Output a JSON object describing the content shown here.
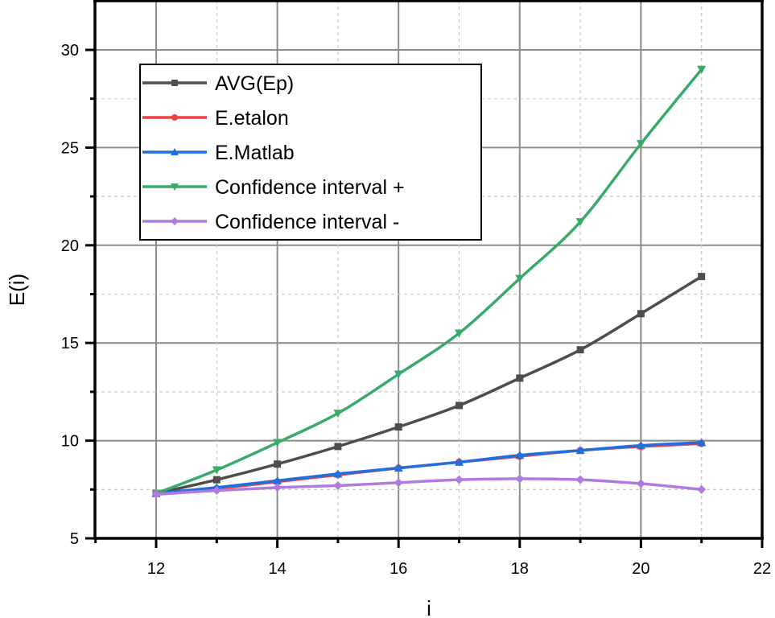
{
  "chart_data": {
    "type": "line",
    "title": "",
    "xlabel": "i",
    "ylabel": "E(i)",
    "xlim": [
      11,
      22
    ],
    "ylim": [
      5,
      32.5
    ],
    "x_ticks": [
      12,
      14,
      16,
      18,
      20,
      22
    ],
    "y_ticks": [
      5,
      10,
      15,
      20,
      25,
      30
    ],
    "grid": true,
    "legend_position": "upper left",
    "x": [
      12,
      13,
      14,
      15,
      16,
      17,
      18,
      19,
      20,
      21
    ],
    "series": [
      {
        "name": "AVG(Ep)",
        "color": "#4d4d4d",
        "marker": "square",
        "values": [
          7.3,
          8.0,
          8.8,
          9.7,
          10.7,
          11.8,
          13.2,
          14.65,
          16.5,
          18.4
        ]
      },
      {
        "name": "E.etalon",
        "color": "#f04040",
        "marker": "circle",
        "values": [
          7.3,
          7.55,
          7.9,
          8.25,
          8.6,
          8.9,
          9.2,
          9.5,
          9.7,
          9.85
        ]
      },
      {
        "name": "E.Matlab",
        "color": "#1f6fe0",
        "marker": "triangle-up",
        "values": [
          7.3,
          7.6,
          7.95,
          8.3,
          8.6,
          8.9,
          9.25,
          9.5,
          9.75,
          9.9
        ]
      },
      {
        "name": "Confidence interval +",
        "color": "#3aaa6a",
        "marker": "triangle-down",
        "values": [
          7.3,
          8.5,
          9.9,
          11.4,
          13.4,
          15.5,
          18.3,
          21.2,
          25.2,
          29.0
        ]
      },
      {
        "name": "Confidence interval -",
        "color": "#b07be0",
        "marker": "diamond",
        "values": [
          7.25,
          7.45,
          7.6,
          7.7,
          7.85,
          8.0,
          8.05,
          8.0,
          7.8,
          7.5
        ]
      }
    ]
  }
}
